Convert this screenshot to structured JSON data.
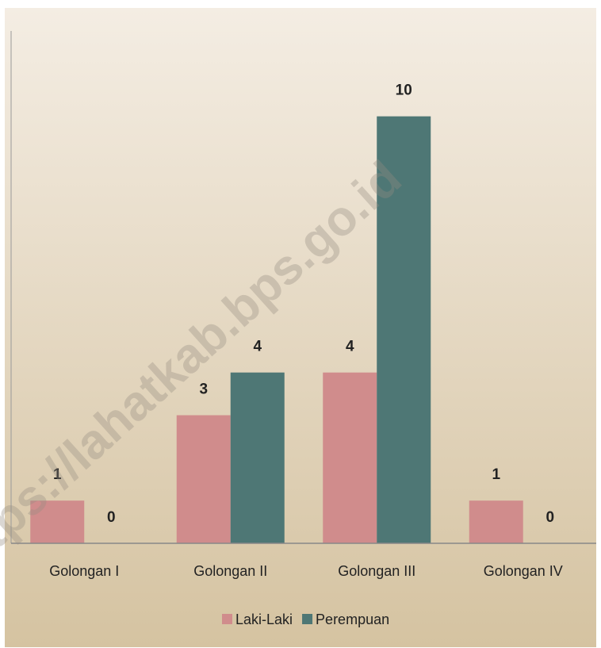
{
  "chart_data": {
    "type": "bar",
    "categories": [
      "Golongan I",
      "Golongan II",
      "Golongan III",
      "Golongan IV"
    ],
    "series": [
      {
        "name": "Laki-Laki",
        "color": "#d08c8c",
        "values": [
          1,
          3,
          4,
          1
        ]
      },
      {
        "name": "Perempuan",
        "color": "#4e7775",
        "values": [
          0,
          4,
          10,
          0
        ]
      }
    ],
    "ylim": [
      0,
      12
    ],
    "legend": "bottom",
    "watermark": "https://lahatkab.bps.go.id"
  }
}
